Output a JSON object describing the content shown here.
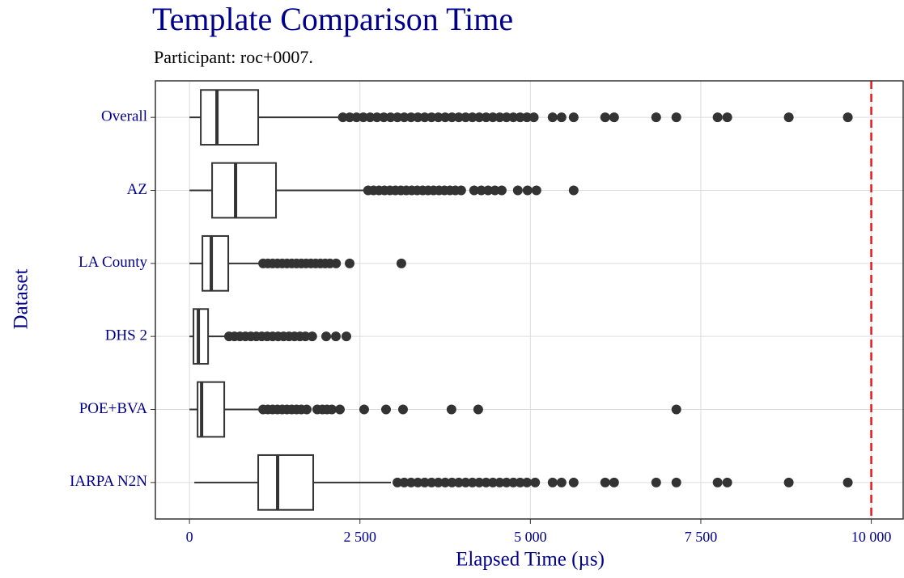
{
  "chart_data": {
    "type": "boxplot",
    "title": "Template Comparison Time",
    "subtitle": "Participant: roc+0007.",
    "x_label": "Elapsed Time (µs)",
    "y_label": "Dataset",
    "categories": [
      "Overall",
      "AZ",
      "LA County",
      "DHS 2",
      "POE+BVA",
      "IARPA N2N"
    ],
    "boxes": [
      {
        "min": 0,
        "q1": 166,
        "median": 403,
        "q3": 1008,
        "max": 2206,
        "outliers": [
          2250,
          2350,
          2450,
          2550,
          2650,
          2750,
          2850,
          2950,
          3050,
          3150,
          3250,
          3350,
          3450,
          3550,
          3650,
          3750,
          3850,
          3950,
          4050,
          4150,
          4250,
          4350,
          4450,
          4550,
          4650,
          4750,
          4850,
          4950,
          5050,
          5326,
          5457,
          5635,
          6097,
          6228,
          6845,
          7141,
          7746,
          7888,
          8790,
          9656
        ]
      },
      {
        "min": 0,
        "q1": 332,
        "median": 676,
        "q3": 1269,
        "max": 2586,
        "outliers": [
          2620,
          2700,
          2780,
          2860,
          2940,
          3020,
          3100,
          3180,
          3260,
          3340,
          3420,
          3500,
          3580,
          3660,
          3740,
          3820,
          3900,
          3985,
          4175,
          4280,
          4380,
          4480,
          4580,
          4816,
          4958,
          5089,
          5635
        ]
      },
      {
        "min": 0,
        "q1": 190,
        "median": 320,
        "q3": 569,
        "max": 1044,
        "outliers": [
          1080,
          1150,
          1220,
          1290,
          1360,
          1430,
          1500,
          1570,
          1640,
          1710,
          1780,
          1850,
          1920,
          1990,
          2060,
          2150,
          2349,
          3108
        ]
      },
      {
        "min": 0,
        "q1": 59,
        "median": 130,
        "q3": 273,
        "max": 546,
        "outliers": [
          580,
          660,
          740,
          820,
          900,
          980,
          1060,
          1140,
          1220,
          1300,
          1380,
          1460,
          1540,
          1620,
          1700,
          1800,
          2005,
          2147,
          2301
        ]
      },
      {
        "min": 0,
        "q1": 119,
        "median": 178,
        "q3": 510,
        "max": 1044,
        "outliers": [
          1080,
          1150,
          1220,
          1290,
          1360,
          1430,
          1500,
          1570,
          1640,
          1720,
          1874,
          1950,
          2017,
          2088,
          2206,
          2562,
          2883,
          3132,
          3843,
          4235,
          7141
        ]
      },
      {
        "min": 71,
        "q1": 1008,
        "median": 1293,
        "q3": 1815,
        "max": 2954,
        "outliers": [
          3050,
          3150,
          3250,
          3350,
          3450,
          3550,
          3650,
          3750,
          3850,
          3950,
          4050,
          4150,
          4250,
          4350,
          4450,
          4550,
          4650,
          4750,
          4850,
          4950,
          5070,
          5326,
          5457,
          5635,
          6097,
          6228,
          6845,
          7141,
          7746,
          7888,
          8790,
          9656
        ]
      }
    ],
    "box_color": "#333333",
    "threshold": 10000,
    "threshold_color": "#e31a1c",
    "xlim": [
      -500,
      10480
    ],
    "xticks": [
      0,
      {
        "value": 2500,
        "label": "2 500"
      },
      {
        "value": 5000,
        "label": "5 000"
      },
      {
        "value": 7500,
        "label": "7 500"
      },
      {
        "value": 10000,
        "label": "10 000"
      }
    ],
    "grid": true
  }
}
